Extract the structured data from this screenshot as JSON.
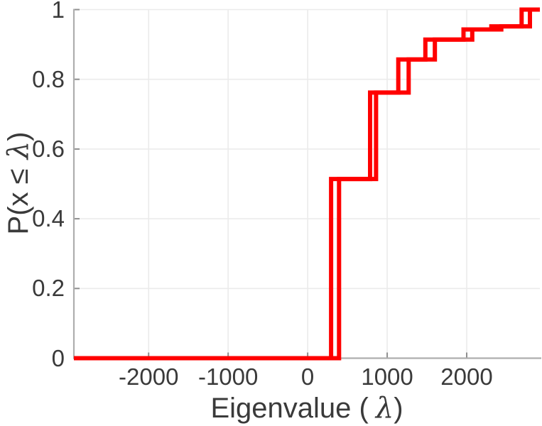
{
  "figure": {
    "background": "#ffffff"
  },
  "colors": {
    "curve": "#ff0000",
    "axis": "#aeaeae",
    "tick": "#8f8f8f",
    "grid": "#ebebeb",
    "text": "#3a3a3a"
  },
  "chart_data": {
    "type": "line",
    "variant": "ecdf_step_plot",
    "title": "",
    "xlabel": "Eigenvalue ( λ)",
    "xlabel_parts": {
      "pre": "Eigenvalue (",
      "lambda": "λ",
      "post": ")"
    },
    "ylabel": "P(x ≤ λ)",
    "ylabel_parts": {
      "pre": "P(x ≤ ",
      "lambda": "λ",
      "post": ")"
    },
    "xlim": [
      -2940,
      2920
    ],
    "ylim": [
      0,
      1
    ],
    "xtick_values": [
      -2000,
      -1000,
      0,
      1000,
      2000
    ],
    "xtick_labels": [
      "-2000",
      "-1000",
      "0",
      "1000",
      "2000"
    ],
    "ytick_values": [
      0,
      0.2,
      0.4,
      0.6,
      0.8,
      1
    ],
    "ytick_labels": [
      "0",
      "0.2",
      "0.4",
      "0.6",
      "0.8",
      "1"
    ],
    "grid": true,
    "legend": null,
    "cumulative_levels": [
      0,
      0.514,
      0.762,
      0.857,
      0.914,
      0.943,
      0.952,
      1.0
    ],
    "series": [
      {
        "name": "ecdf-curve-1",
        "color": "#ff0000",
        "jump_x": [
          295,
          785,
          1140,
          1480,
          1960,
          2310,
          2690
        ]
      },
      {
        "name": "ecdf-curve-2",
        "color": "#ff0000",
        "jump_x": [
          395,
          860,
          1270,
          1600,
          2070,
          2435,
          2795
        ]
      }
    ]
  }
}
